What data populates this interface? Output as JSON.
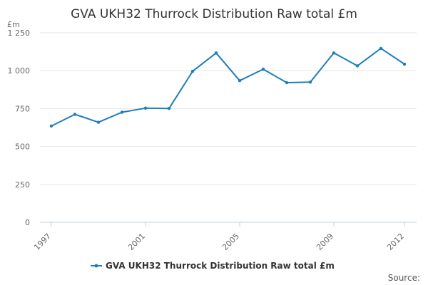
{
  "chart_data": {
    "type": "line",
    "title": "GVA UKH32 Thurrock Distribution Raw total £m",
    "unit_label": "£m",
    "x": [
      1997,
      1998,
      1999,
      2000,
      2001,
      2002,
      2003,
      2004,
      2005,
      2006,
      2007,
      2008,
      2009,
      2010,
      2011,
      2012
    ],
    "x_ticks": [
      1997,
      2001,
      2005,
      2009,
      2012
    ],
    "y_ticks": [
      {
        "value": 0,
        "label": "0"
      },
      {
        "value": 250,
        "label": "250"
      },
      {
        "value": 500,
        "label": "500"
      },
      {
        "value": 750,
        "label": "750"
      },
      {
        "value": 1000,
        "label": "1 000"
      },
      {
        "value": 1250,
        "label": "1 250"
      }
    ],
    "ylim": [
      0,
      1250
    ],
    "grid": true,
    "series": [
      {
        "name": "GVA UKH32 Thurrock Distribution Raw total £m",
        "color": "#1f7dba",
        "values": [
          635,
          712,
          660,
          726,
          753,
          751,
          996,
          1117,
          934,
          1010,
          921,
          925,
          1117,
          1032,
          1147,
          1043
        ]
      }
    ],
    "legend_position": "bottom-center",
    "source_label": "Source:"
  }
}
